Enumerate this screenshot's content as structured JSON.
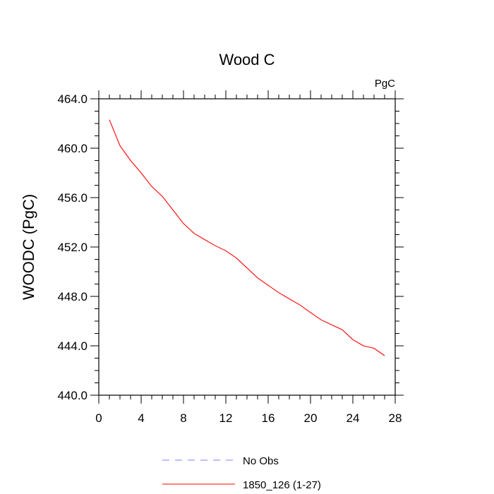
{
  "chart_data": {
    "type": "line",
    "title": "Wood C",
    "units_label": "PgC",
    "xlabel": "",
    "ylabel": "WOODC  (PgC)",
    "xlim": [
      0,
      28
    ],
    "ylim": [
      440,
      464
    ],
    "x_ticks": [
      0,
      4,
      8,
      12,
      16,
      20,
      24,
      28
    ],
    "x_tick_labels": [
      "0",
      "4",
      "8",
      "12",
      "16",
      "20",
      "24",
      "28"
    ],
    "y_ticks": [
      440,
      444,
      448,
      452,
      456,
      460,
      464
    ],
    "y_tick_labels": [
      "440.0",
      "444.0",
      "448.0",
      "452.0",
      "456.0",
      "460.0",
      "464.0"
    ],
    "grid": false,
    "legend_position": "bottom-center",
    "series": [
      {
        "name": "No Obs",
        "color": "#8080ff",
        "dash": "dashed",
        "x": [],
        "y": []
      },
      {
        "name": "1850_126 (1-27)",
        "color": "#ff0000",
        "dash": "solid",
        "x": [
          1,
          2,
          3,
          4,
          5,
          6,
          7,
          8,
          9,
          10,
          11,
          12,
          13,
          14,
          15,
          16,
          17,
          18,
          19,
          20,
          21,
          22,
          23,
          24,
          25,
          26,
          27
        ],
        "y": [
          462.3,
          460.2,
          459.0,
          458.0,
          456.9,
          456.1,
          455.0,
          453.9,
          453.1,
          452.6,
          452.1,
          451.7,
          451.1,
          450.3,
          449.5,
          448.9,
          448.3,
          447.8,
          447.3,
          446.7,
          446.1,
          445.7,
          445.3,
          444.5,
          444.0,
          443.8,
          443.2
        ]
      }
    ]
  }
}
